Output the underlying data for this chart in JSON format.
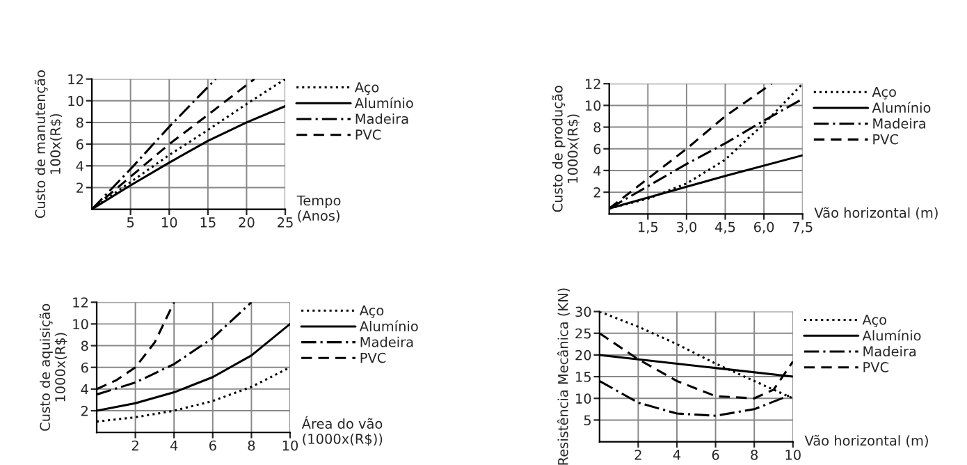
{
  "chart_data": [
    {
      "type": "line",
      "ylabel": "Custo de manutenção\n100x(R$)",
      "xlabel": "Tempo\n(Anos)",
      "xlim": [
        0,
        25
      ],
      "ylim": [
        0,
        12
      ],
      "xticks": [
        5,
        10,
        15,
        20,
        25
      ],
      "yticks": [
        2,
        4,
        6,
        8,
        10,
        12
      ],
      "grid": true,
      "legend": "right",
      "series": [
        {
          "name": "Aço",
          "color": "#000000",
          "line_style": "dotted",
          "x": [
            0,
            5,
            10,
            15,
            20,
            25
          ],
          "values": [
            0,
            2.5,
            5,
            7.3,
            9.7,
            12
          ]
        },
        {
          "name": "Alumínio",
          "color": "#000000",
          "line_style": "solid",
          "x": [
            0,
            5,
            10,
            15,
            20,
            25
          ],
          "values": [
            0,
            2.2,
            4.3,
            6.3,
            8,
            9.5
          ]
        },
        {
          "name": "Madeira",
          "color": "#000000",
          "line_style": "dashdot",
          "x": [
            0,
            5,
            10,
            16
          ],
          "values": [
            0,
            3.7,
            7.6,
            12
          ]
        },
        {
          "name": "PVC",
          "color": "#000000",
          "line_style": "dashed",
          "x": [
            0,
            5,
            10,
            15,
            21
          ],
          "values": [
            0,
            3,
            6,
            8.7,
            12
          ]
        }
      ]
    },
    {
      "type": "line",
      "ylabel": "Custo de produção\n1000x(R$)",
      "xlabel": "Vão horizontal (m)",
      "xlim": [
        0,
        7.5
      ],
      "ylim": [
        0,
        12
      ],
      "xticks": [
        {
          "value": 1.5,
          "label": "1,5"
        },
        {
          "value": 3.0,
          "label": "3,0"
        },
        {
          "value": 4.5,
          "label": "4,5"
        },
        {
          "value": 6.0,
          "label": "6,0"
        },
        {
          "value": 7.5,
          "label": "7,5"
        }
      ],
      "yticks": [
        2,
        4,
        6,
        8,
        10,
        12
      ],
      "grid": true,
      "legend": "right",
      "series": [
        {
          "name": "Aço",
          "color": "#000000",
          "line_style": "dotted",
          "x": [
            0,
            1.5,
            3.0,
            4.5,
            6.0,
            7.5
          ],
          "values": [
            0.5,
            1.4,
            2.8,
            5,
            8.3,
            12
          ]
        },
        {
          "name": "Alumínio",
          "color": "#000000",
          "line_style": "solid",
          "x": [
            0,
            3.0,
            4.5,
            7.5
          ],
          "values": [
            0.5,
            2.5,
            3.5,
            5.4
          ]
        },
        {
          "name": "Madeira",
          "color": "#000000",
          "line_style": "dashdot",
          "x": [
            0,
            3.0,
            4.5,
            6.0,
            7.5
          ],
          "values": [
            0.5,
            4.6,
            6.5,
            8.6,
            10.6
          ]
        },
        {
          "name": "PVC",
          "color": "#000000",
          "line_style": "dashed",
          "x": [
            0,
            3.0,
            4.5,
            6.3
          ],
          "values": [
            0.5,
            6,
            9,
            12
          ]
        }
      ]
    },
    {
      "type": "line",
      "ylabel": "Custo de aquisição\n1000x(R$)",
      "xlabel": "Área do vão\n(1000x(R$))",
      "xlim": [
        0,
        10
      ],
      "ylim": [
        0,
        12
      ],
      "xticks": [
        2,
        4,
        6,
        8,
        10
      ],
      "yticks": [
        2,
        4,
        6,
        8,
        10,
        12
      ],
      "grid": true,
      "legend": "right",
      "series": [
        {
          "name": "Aço",
          "color": "#000000",
          "line_style": "dotted",
          "x": [
            0,
            2,
            4,
            6,
            8,
            10
          ],
          "values": [
            1,
            1.4,
            2,
            2.9,
            4.2,
            6
          ]
        },
        {
          "name": "Alumínio",
          "color": "#000000",
          "line_style": "solid",
          "x": [
            0,
            2,
            4,
            6,
            8,
            10
          ],
          "values": [
            2,
            2.7,
            3.7,
            5.1,
            7.1,
            10
          ]
        },
        {
          "name": "Madeira",
          "color": "#000000",
          "line_style": "dashdot",
          "x": [
            0,
            2,
            4,
            6,
            8
          ],
          "values": [
            3.5,
            4.6,
            6.3,
            8.7,
            12
          ]
        },
        {
          "name": "PVC",
          "color": "#000000",
          "line_style": "dashed",
          "x": [
            0,
            1,
            2,
            3,
            4
          ],
          "values": [
            4,
            4.8,
            6,
            8.3,
            12
          ]
        }
      ]
    },
    {
      "type": "line",
      "ylabel": "Resistência Mecânica (KN)",
      "xlabel": "Vão horizontal (m)",
      "xlim": [
        0,
        10
      ],
      "ylim": [
        0,
        30
      ],
      "xticks": [
        2,
        4,
        6,
        8,
        10
      ],
      "yticks": [
        5,
        10,
        15,
        20,
        25,
        30
      ],
      "grid": true,
      "legend": "right",
      "series": [
        {
          "name": "Aço",
          "color": "#000000",
          "line_style": "dotted",
          "x": [
            0,
            2,
            4,
            6,
            8,
            10
          ],
          "values": [
            30,
            26.5,
            22.5,
            18,
            14,
            10
          ]
        },
        {
          "name": "Alumínio",
          "color": "#000000",
          "line_style": "solid",
          "x": [
            0,
            6,
            10
          ],
          "values": [
            20,
            17,
            15
          ]
        },
        {
          "name": "Madeira",
          "color": "#000000",
          "line_style": "dashdot",
          "x": [
            0,
            2,
            4,
            6,
            8,
            10
          ],
          "values": [
            14,
            9,
            6.5,
            6,
            7.5,
            11
          ]
        },
        {
          "name": "PVC",
          "color": "#000000",
          "line_style": "dashed",
          "x": [
            0,
            2,
            4,
            6,
            8,
            9,
            10
          ],
          "values": [
            25,
            19,
            14,
            10.5,
            10,
            12,
            18.5
          ]
        }
      ]
    }
  ]
}
